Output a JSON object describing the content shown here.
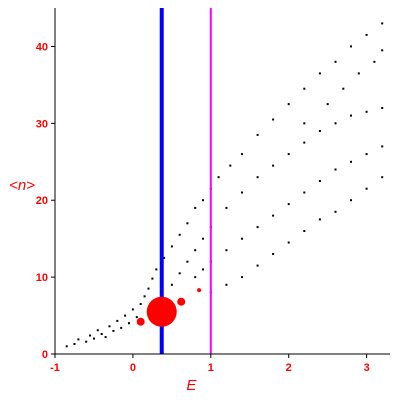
{
  "chart_data": {
    "type": "scatter",
    "xlabel": "E",
    "ylabel": "<n>",
    "xlim": [
      -1,
      3.3
    ],
    "ylim": [
      0,
      45
    ],
    "xticks": [
      -1,
      0,
      1,
      2,
      3
    ],
    "yticks": [
      0,
      10,
      20,
      30,
      40
    ],
    "xtick_labels": [
      "-1",
      "0",
      "1",
      "2",
      "3"
    ],
    "ytick_labels": [
      "0",
      "10",
      "20",
      "30",
      "40"
    ],
    "vertical_lines": [
      {
        "x": 0.37,
        "color": "#0000ff"
      },
      {
        "x": 1.0,
        "color": "#ff00ff"
      }
    ],
    "colors": {
      "axis_labels": "#ff0000",
      "points": "#000000",
      "bubbles": "#ff0000"
    },
    "series": [
      {
        "kind": "points",
        "points": [
          [
            -0.85,
            1.0
          ],
          [
            -0.75,
            1.3
          ],
          [
            -0.7,
            1.9
          ],
          [
            -0.6,
            1.6
          ],
          [
            -0.55,
            2.4
          ],
          [
            -0.5,
            2.0
          ],
          [
            -0.45,
            3.1
          ],
          [
            -0.4,
            2.6
          ],
          [
            -0.35,
            2.2
          ],
          [
            -0.3,
            3.6
          ],
          [
            -0.25,
            3.0
          ],
          [
            -0.2,
            4.3
          ],
          [
            -0.15,
            3.4
          ],
          [
            -0.1,
            5.0
          ],
          [
            -0.05,
            4.0
          ],
          [
            0.0,
            5.8
          ],
          [
            0.05,
            4.8
          ],
          [
            0.1,
            6.5
          ],
          [
            0.15,
            7.5
          ],
          [
            0.2,
            8.5
          ],
          [
            0.25,
            9.8
          ],
          [
            0.3,
            11.0
          ],
          [
            0.4,
            12.5
          ],
          [
            0.5,
            14.0
          ],
          [
            0.6,
            15.5
          ],
          [
            0.7,
            17.0
          ],
          [
            0.8,
            19.0
          ],
          [
            0.9,
            20.0
          ],
          [
            1.0,
            21.5
          ],
          [
            1.1,
            23.0
          ],
          [
            1.25,
            24.5
          ],
          [
            1.4,
            26.0
          ],
          [
            1.6,
            28.5
          ],
          [
            1.8,
            30.5
          ],
          [
            2.0,
            32.5
          ],
          [
            2.2,
            34.5
          ],
          [
            2.4,
            36.5
          ],
          [
            2.6,
            38.0
          ],
          [
            2.8,
            40.0
          ],
          [
            3.0,
            41.5
          ],
          [
            3.2,
            43.0
          ],
          [
            0.5,
            9.0
          ],
          [
            0.6,
            10.5
          ],
          [
            0.7,
            12.0
          ],
          [
            0.8,
            13.5
          ],
          [
            0.9,
            15.0
          ],
          [
            1.0,
            16.5
          ],
          [
            1.2,
            19.0
          ],
          [
            1.4,
            21.0
          ],
          [
            1.6,
            23.0
          ],
          [
            1.8,
            24.5
          ],
          [
            2.0,
            26.0
          ],
          [
            2.2,
            27.5
          ],
          [
            2.4,
            29.0
          ],
          [
            2.6,
            30.0
          ],
          [
            2.8,
            31.0
          ],
          [
            3.0,
            31.5
          ],
          [
            3.2,
            32.0
          ],
          [
            0.8,
            10.0
          ],
          [
            0.9,
            11.0
          ],
          [
            1.0,
            12.0
          ],
          [
            1.2,
            13.5
          ],
          [
            1.4,
            15.0
          ],
          [
            1.6,
            16.5
          ],
          [
            1.8,
            18.0
          ],
          [
            2.0,
            19.5
          ],
          [
            2.2,
            21.0
          ],
          [
            2.4,
            22.5
          ],
          [
            2.6,
            24.0
          ],
          [
            2.8,
            25.0
          ],
          [
            3.0,
            26.0
          ],
          [
            3.2,
            27.0
          ],
          [
            1.0,
            8.0
          ],
          [
            1.2,
            9.0
          ],
          [
            1.4,
            10.0
          ],
          [
            1.6,
            11.5
          ],
          [
            1.8,
            13.0
          ],
          [
            2.0,
            14.5
          ],
          [
            2.2,
            16.0
          ],
          [
            2.4,
            17.5
          ],
          [
            2.6,
            18.5
          ],
          [
            2.8,
            20.0
          ],
          [
            3.0,
            21.5
          ],
          [
            3.2,
            23.0
          ],
          [
            2.2,
            30.0
          ],
          [
            2.5,
            32.5
          ],
          [
            2.7,
            34.5
          ],
          [
            2.9,
            36.5
          ],
          [
            3.1,
            38.0
          ],
          [
            3.2,
            39.5
          ]
        ]
      },
      {
        "kind": "bubbles",
        "points": [
          [
            0.37,
            5.5,
            15
          ],
          [
            0.1,
            4.2,
            4
          ],
          [
            0.62,
            6.8,
            4
          ],
          [
            0.85,
            8.3,
            2
          ]
        ]
      }
    ]
  }
}
